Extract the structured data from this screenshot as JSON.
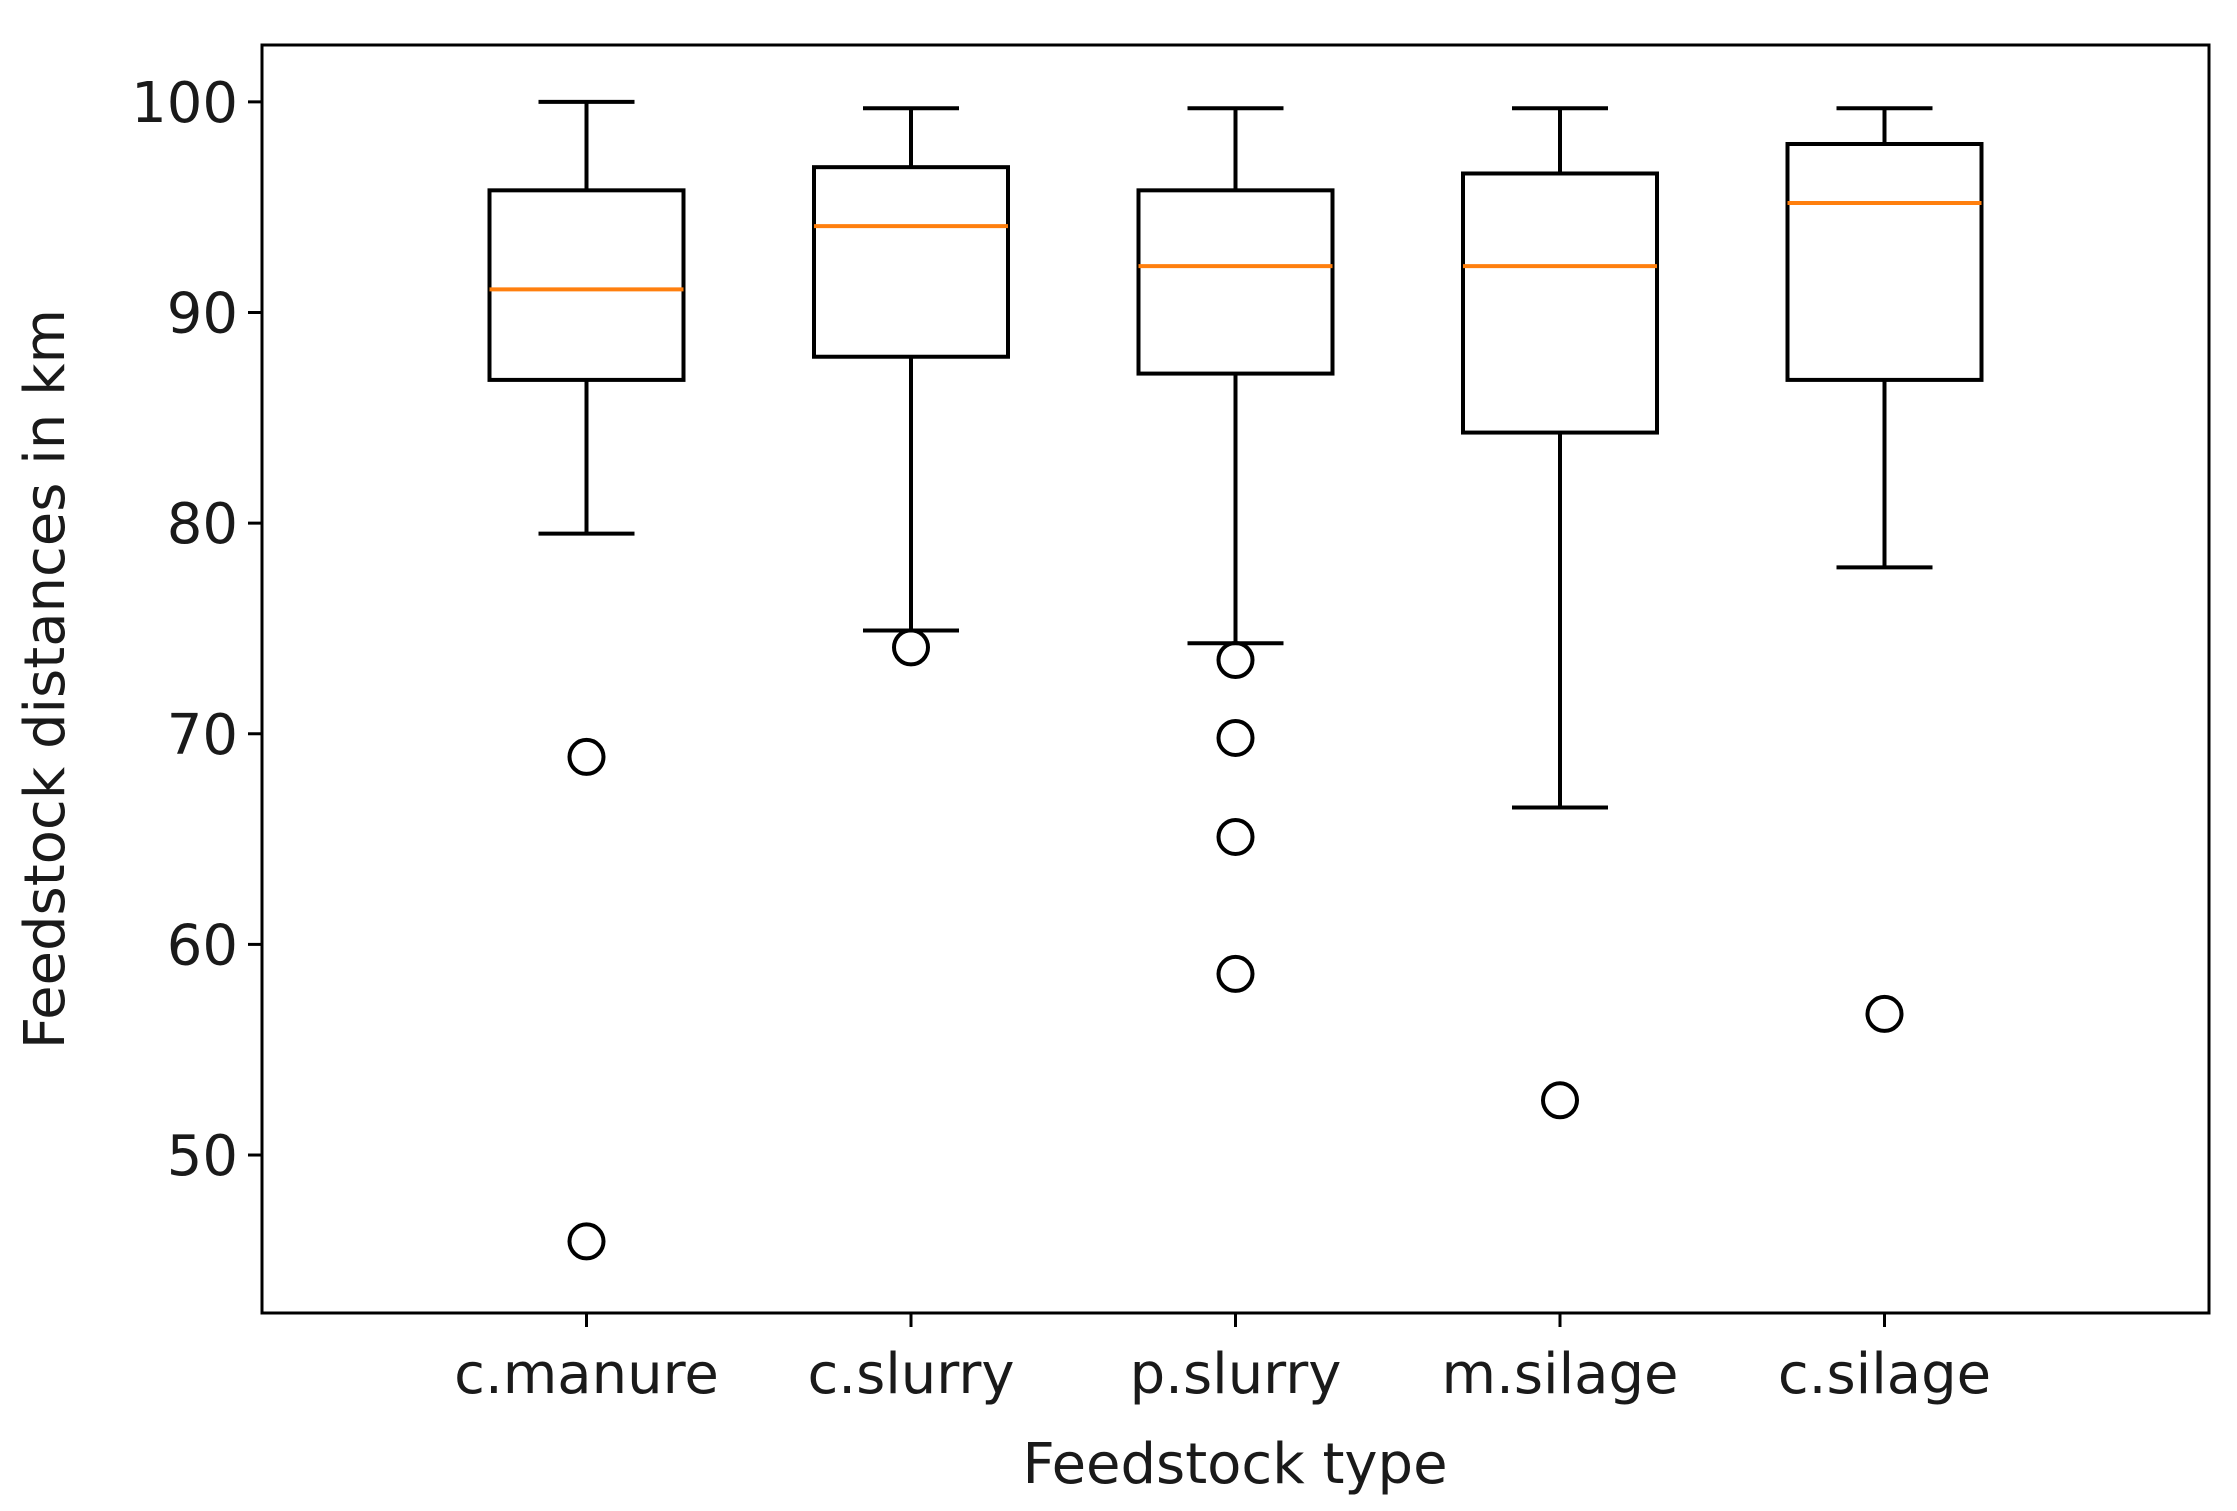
{
  "chart_data": {
    "type": "boxplot",
    "title": "",
    "xlabel": "Feedstock type",
    "ylabel": "Feedstock distances in km",
    "categories": [
      "c.manure",
      "c.slurry",
      "p.slurry",
      "m.silage",
      "c.silage"
    ],
    "ylim": [
      42.5,
      102.7
    ],
    "yticks": [
      50,
      60,
      70,
      80,
      90,
      100
    ],
    "ytick_labels": [
      "50",
      "60",
      "70",
      "80",
      "90",
      "100"
    ],
    "grid": false,
    "colors": {
      "box": "#000000",
      "median": "#ff7f0e",
      "flier": "#000000",
      "frame": "#000000"
    },
    "boxes": [
      {
        "category": "c.manure",
        "whisker_low": 79.5,
        "q1": 86.8,
        "median": 91.1,
        "q3": 95.8,
        "whisker_high": 100.0,
        "fliers": [
          68.9,
          45.9
        ]
      },
      {
        "category": "c.slurry",
        "whisker_low": 74.9,
        "q1": 87.9,
        "median": 94.1,
        "q3": 96.9,
        "whisker_high": 99.7,
        "fliers": [
          74.1
        ]
      },
      {
        "category": "p.slurry",
        "whisker_low": 74.3,
        "q1": 87.1,
        "median": 92.2,
        "q3": 95.8,
        "whisker_high": 99.7,
        "fliers": [
          73.5,
          69.8,
          65.1,
          58.6
        ]
      },
      {
        "category": "m.silage",
        "whisker_low": 66.5,
        "q1": 84.3,
        "median": 92.2,
        "q3": 96.6,
        "whisker_high": 99.7,
        "fliers": [
          52.6
        ]
      },
      {
        "category": "c.silage",
        "whisker_low": 77.9,
        "q1": 86.8,
        "median": 95.2,
        "q3": 98.0,
        "whisker_high": 99.7,
        "fliers": [
          56.7
        ]
      }
    ]
  }
}
